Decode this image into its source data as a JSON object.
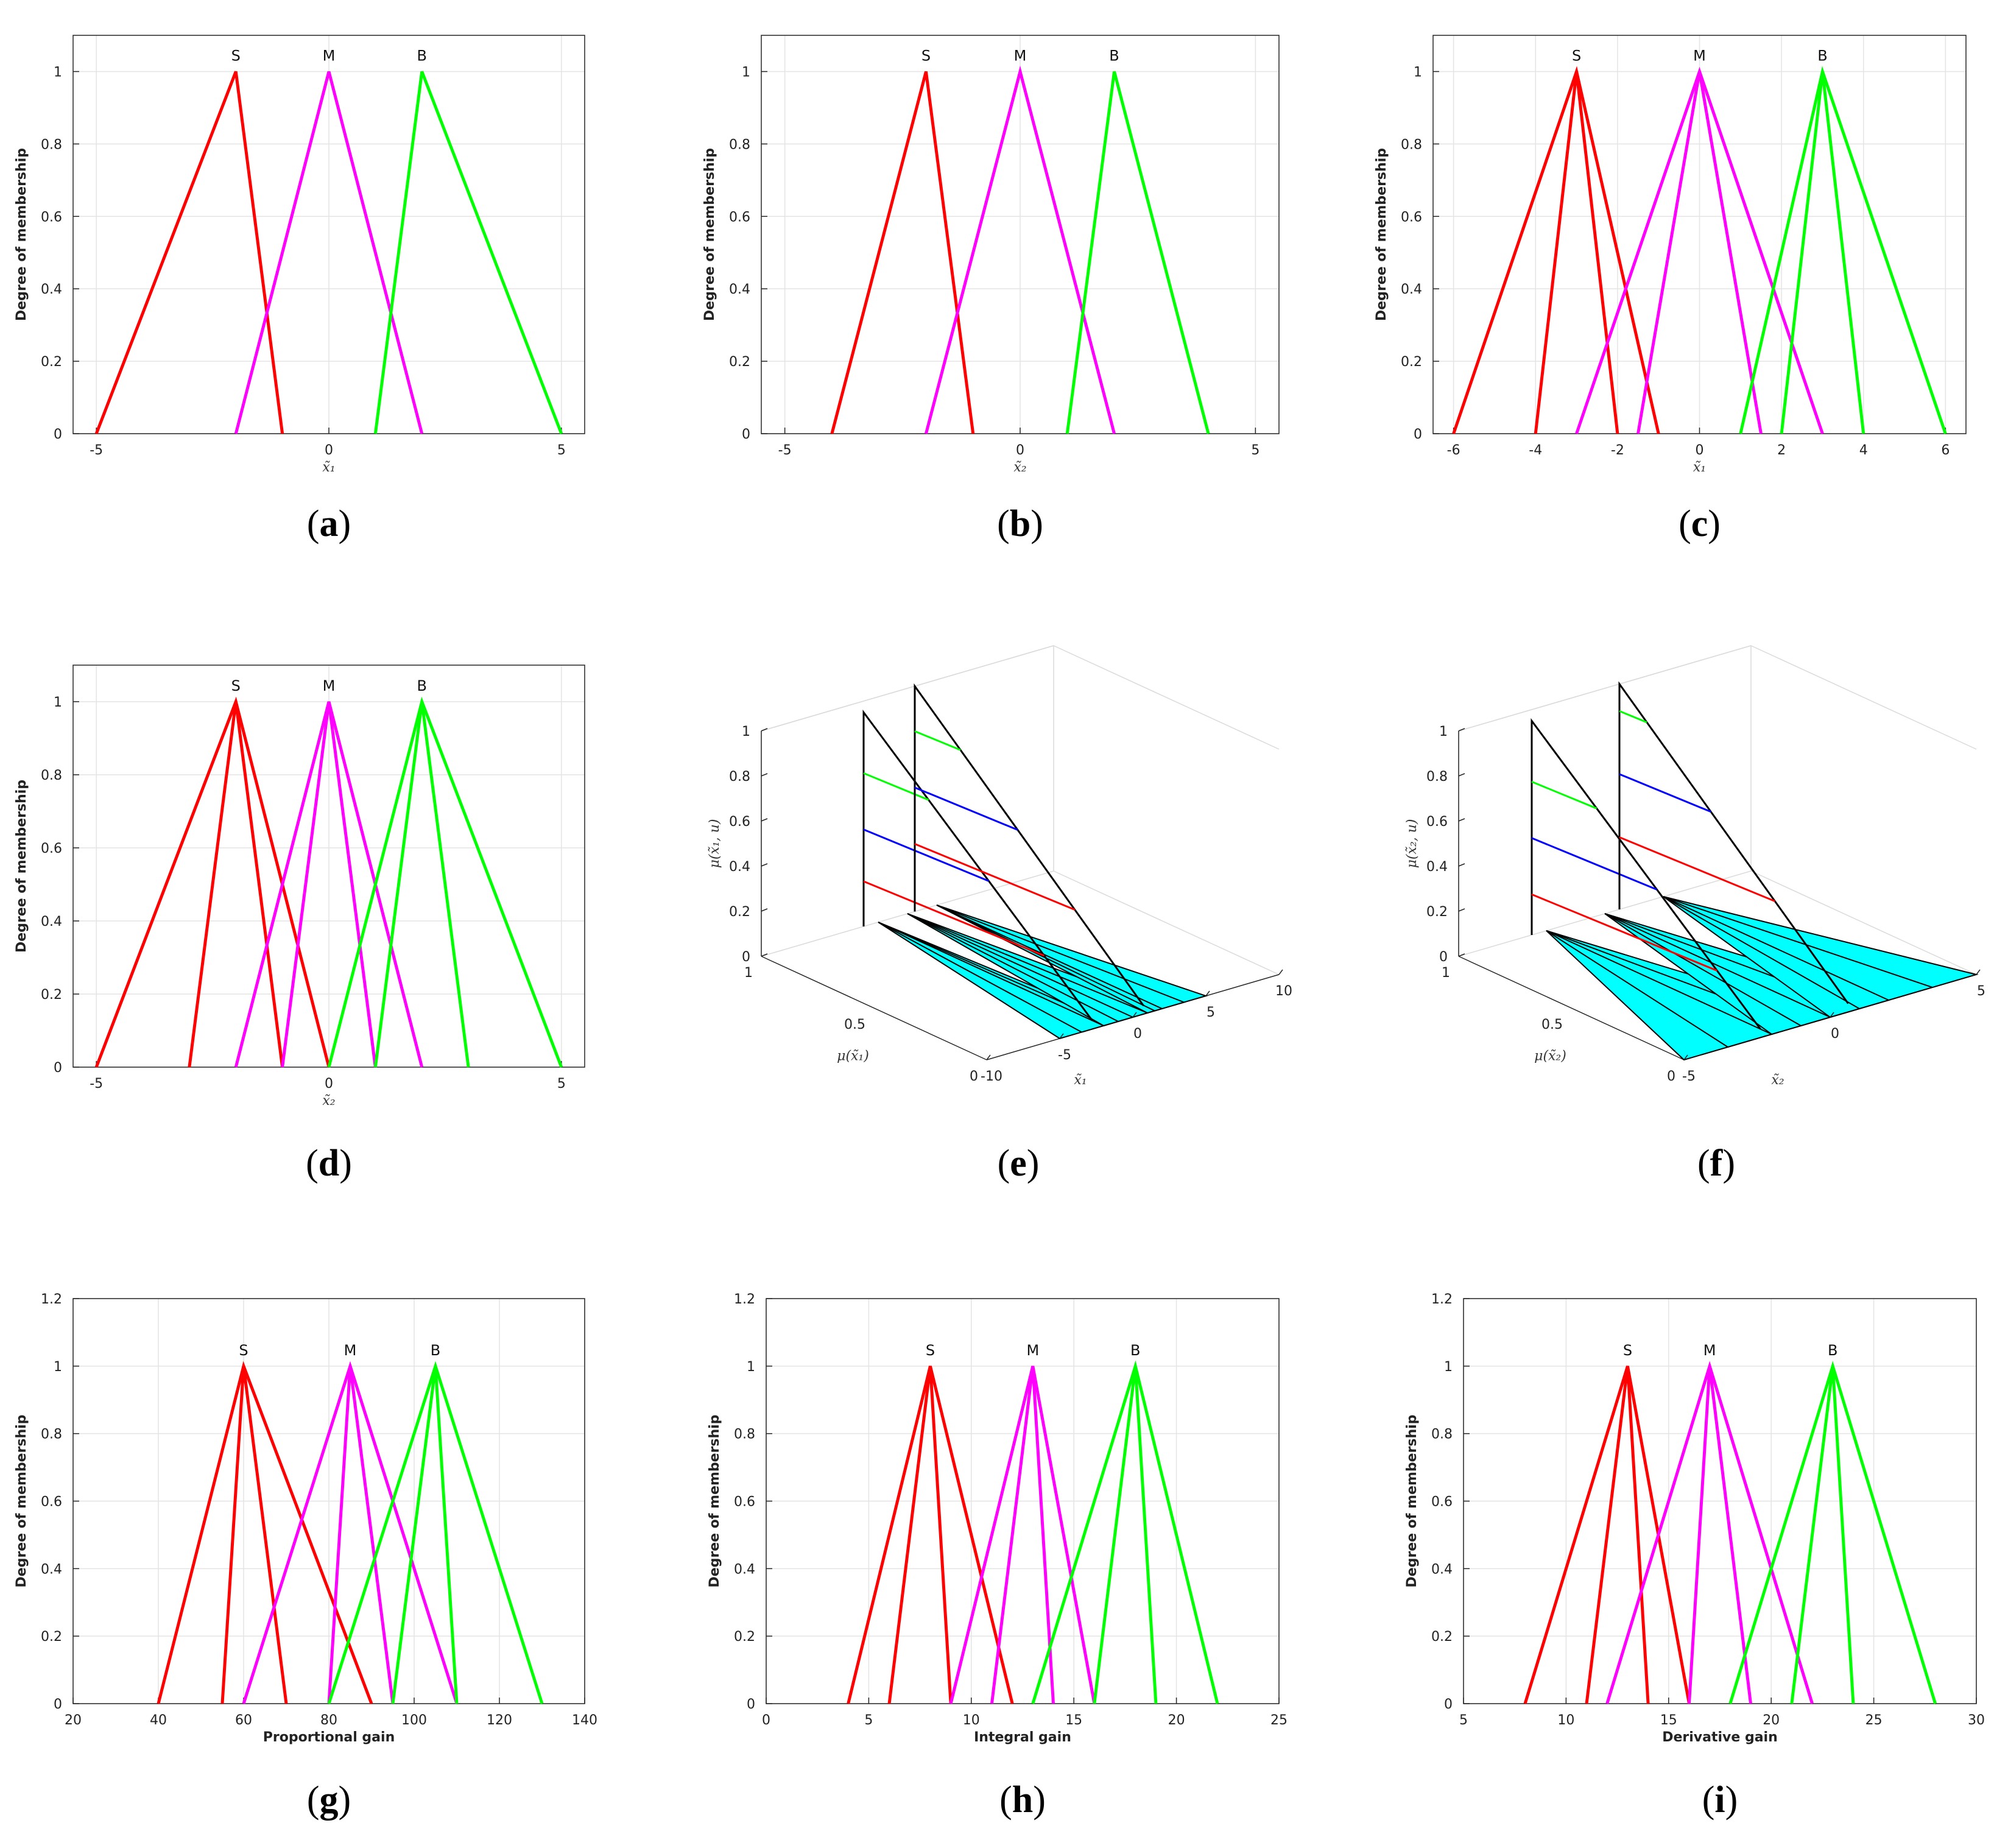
{
  "figure": {
    "ylabel_2d": "Degree of membership",
    "colors": {
      "S": "#ff0000",
      "M": "#ff00ff",
      "B": "#00ff00",
      "fill3d": "#00ffff",
      "mid": "#0000ff"
    }
  },
  "chart_data": [
    {
      "id": "a",
      "type": "line",
      "caption": "a",
      "xlabel": "x̃₁",
      "xlabel_weight": "normal",
      "xlim": [
        -5.5,
        5.5
      ],
      "ylim": [
        0,
        1.1
      ],
      "xticks": [
        -5,
        0,
        5
      ],
      "xtick_labels": [
        "-5",
        "0",
        "5"
      ],
      "yticks": [
        0,
        0.2,
        0.4,
        0.6,
        0.8,
        1
      ],
      "ytick_labels": [
        "0",
        "0.2",
        "0.4",
        "0.6",
        "0.8",
        "1"
      ],
      "series": [
        {
          "name": "S",
          "color": "#ff0000",
          "x": [
            -5,
            -2,
            -1
          ],
          "y": [
            0,
            1,
            0
          ]
        },
        {
          "name": "M",
          "color": "#ff00ff",
          "x": [
            -2,
            0,
            2
          ],
          "y": [
            0,
            1,
            0
          ]
        },
        {
          "name": "B",
          "color": "#00ff00",
          "x": [
            1,
            2,
            5
          ],
          "y": [
            0,
            1,
            0
          ]
        }
      ],
      "annotations": [
        {
          "text": "S",
          "x": -2
        },
        {
          "text": "M",
          "x": 0
        },
        {
          "text": "B",
          "x": 2
        }
      ]
    },
    {
      "id": "b",
      "type": "line",
      "caption": "b",
      "xlabel": "x̃₂",
      "xlabel_weight": "normal",
      "xlim": [
        -5.5,
        5.5
      ],
      "ylim": [
        0,
        1.1
      ],
      "xticks": [
        -5,
        0,
        5
      ],
      "xtick_labels": [
        "-5",
        "0",
        "5"
      ],
      "yticks": [
        0,
        0.2,
        0.4,
        0.6,
        0.8,
        1
      ],
      "ytick_labels": [
        "0",
        "0.2",
        "0.4",
        "0.6",
        "0.8",
        "1"
      ],
      "series": [
        {
          "name": "S",
          "color": "#ff0000",
          "x": [
            -4,
            -2,
            -1
          ],
          "y": [
            0,
            1,
            0
          ]
        },
        {
          "name": "M",
          "color": "#ff00ff",
          "x": [
            -2,
            0,
            2
          ],
          "y": [
            0,
            1,
            0
          ]
        },
        {
          "name": "B",
          "color": "#00ff00",
          "x": [
            1,
            2,
            4
          ],
          "y": [
            0,
            1,
            0
          ]
        }
      ],
      "annotations": [
        {
          "text": "S",
          "x": -2
        },
        {
          "text": "M",
          "x": 0
        },
        {
          "text": "B",
          "x": 2
        }
      ]
    },
    {
      "id": "c",
      "type": "line",
      "caption": "c",
      "xlabel": "x̃₁",
      "xlabel_weight": "normal",
      "xlim": [
        -6.5,
        6.5
      ],
      "ylim": [
        0,
        1.1
      ],
      "xticks": [
        -6,
        -4,
        -2,
        0,
        2,
        4,
        6
      ],
      "xtick_labels": [
        "-6",
        "-4",
        "-2",
        "0",
        "2",
        "4",
        "6"
      ],
      "yticks": [
        0,
        0.2,
        0.4,
        0.6,
        0.8,
        1
      ],
      "ytick_labels": [
        "0",
        "0.2",
        "0.4",
        "0.6",
        "0.8",
        "1"
      ],
      "series": [
        {
          "name": "S upper",
          "color": "#ff0000",
          "x": [
            -6,
            -3,
            -1
          ],
          "y": [
            0,
            1,
            0
          ]
        },
        {
          "name": "S lower",
          "color": "#ff0000",
          "x": [
            -4,
            -3,
            -2
          ],
          "y": [
            0,
            1,
            0
          ]
        },
        {
          "name": "M upper",
          "color": "#ff00ff",
          "x": [
            -3,
            0,
            3
          ],
          "y": [
            0,
            1,
            0
          ]
        },
        {
          "name": "M lower",
          "color": "#ff00ff",
          "x": [
            -1.5,
            0,
            1.5
          ],
          "y": [
            0,
            1,
            0
          ]
        },
        {
          "name": "B upper",
          "color": "#00ff00",
          "x": [
            1,
            3,
            6
          ],
          "y": [
            0,
            1,
            0
          ]
        },
        {
          "name": "B lower",
          "color": "#00ff00",
          "x": [
            2,
            3,
            4
          ],
          "y": [
            0,
            1,
            0
          ]
        }
      ],
      "annotations": [
        {
          "text": "S",
          "x": -3
        },
        {
          "text": "M",
          "x": 0
        },
        {
          "text": "B",
          "x": 3
        }
      ]
    },
    {
      "id": "d",
      "type": "line",
      "caption": "d",
      "xlabel": "x̃₂",
      "xlabel_weight": "normal",
      "xlim": [
        -5.5,
        5.5
      ],
      "ylim": [
        0,
        1.1
      ],
      "xticks": [
        -5,
        0,
        5
      ],
      "xtick_labels": [
        "-5",
        "0",
        "5"
      ],
      "yticks": [
        0,
        0.2,
        0.4,
        0.6,
        0.8,
        1
      ],
      "ytick_labels": [
        "0",
        "0.2",
        "0.4",
        "0.6",
        "0.8",
        "1"
      ],
      "series": [
        {
          "name": "S upper",
          "color": "#ff0000",
          "x": [
            -5,
            -2,
            0
          ],
          "y": [
            0,
            1,
            0
          ]
        },
        {
          "name": "S lower",
          "color": "#ff0000",
          "x": [
            -3,
            -2,
            -1
          ],
          "y": [
            0,
            1,
            0
          ]
        },
        {
          "name": "M upper",
          "color": "#ff00ff",
          "x": [
            -2,
            0,
            2
          ],
          "y": [
            0,
            1,
            0
          ]
        },
        {
          "name": "M lower",
          "color": "#ff00ff",
          "x": [
            -1,
            0,
            1
          ],
          "y": [
            0,
            1,
            0
          ]
        },
        {
          "name": "B upper",
          "color": "#00ff00",
          "x": [
            0,
            2,
            5
          ],
          "y": [
            0,
            1,
            0
          ]
        },
        {
          "name": "B lower",
          "color": "#00ff00",
          "x": [
            1,
            2,
            3
          ],
          "y": [
            0,
            1,
            0
          ]
        }
      ],
      "annotations": [
        {
          "text": "S",
          "x": -2
        },
        {
          "text": "M",
          "x": 0
        },
        {
          "text": "B",
          "x": 2
        }
      ]
    },
    {
      "id": "e",
      "type": "surface3d",
      "caption": "e",
      "zlabel": "μ(x̃₁, u)",
      "ulabel": "μ(x̃₁)",
      "xlabel": "x̃₁",
      "zticks": [
        "0",
        "0.2",
        "0.4",
        "0.6",
        "0.8",
        "1"
      ],
      "uticks": [
        "1",
        "0.5",
        "0"
      ],
      "xticks": [
        "-10",
        "-5",
        "0",
        "5",
        "10"
      ],
      "xlim": [
        -10,
        10
      ],
      "wedges": [
        {
          "name": "S",
          "x": [
            -5,
            -2,
            -1
          ]
        },
        {
          "name": "M",
          "x": [
            -2,
            0,
            2
          ]
        },
        {
          "name": "B",
          "x": [
            1,
            2,
            5
          ]
        }
      ],
      "slices": [
        {
          "x": -3,
          "u": 1,
          "peak": 0.95,
          "marks": [
            {
              "color": "#ff0000",
              "z": 0.2
            },
            {
              "color": "#0000ff",
              "z": 0.43
            },
            {
              "color": "#00ff00",
              "z": 0.68
            }
          ]
        },
        {
          "x": 0.5,
          "u": 1,
          "peak": 1.0,
          "marks": [
            {
              "color": "#ff0000",
              "z": 0.3
            },
            {
              "color": "#0000ff",
              "z": 0.55
            },
            {
              "color": "#00ff00",
              "z": 0.8
            }
          ]
        }
      ]
    },
    {
      "id": "f",
      "type": "surface3d",
      "caption": "f",
      "zlabel": "μ(x̃₂, u)",
      "ulabel": "μ(x̃₂)",
      "xlabel": "x̃₂",
      "zticks": [
        "0",
        "0.2",
        "0.4",
        "0.6",
        "0.8",
        "1"
      ],
      "uticks": [
        "1",
        "0.5",
        "0"
      ],
      "xticks": [
        "-5",
        "0",
        "5"
      ],
      "xlim": [
        -5,
        5
      ],
      "wedges": [
        {
          "name": "S",
          "x": [
            -5,
            -2,
            0
          ]
        },
        {
          "name": "M",
          "x": [
            -2,
            0,
            2
          ]
        },
        {
          "name": "B",
          "x": [
            0,
            2,
            5
          ]
        }
      ],
      "slices": [
        {
          "x": -2.5,
          "u": 1,
          "peak": 0.95,
          "marks": [
            {
              "color": "#ff0000",
              "z": 0.18
            },
            {
              "color": "#0000ff",
              "z": 0.43
            },
            {
              "color": "#00ff00",
              "z": 0.68
            }
          ]
        },
        {
          "x": 0.5,
          "u": 1,
          "peak": 1.0,
          "marks": [
            {
              "color": "#ff0000",
              "z": 0.32
            },
            {
              "color": "#0000ff",
              "z": 0.6
            },
            {
              "color": "#00ff00",
              "z": 0.88
            }
          ]
        }
      ]
    },
    {
      "id": "g",
      "type": "line",
      "caption": "g",
      "xlabel": "Proportional gain",
      "xlabel_weight": "bold",
      "xlim": [
        20,
        140
      ],
      "ylim": [
        0,
        1.2
      ],
      "xticks": [
        20,
        40,
        60,
        80,
        100,
        120,
        140
      ],
      "xtick_labels": [
        "20",
        "40",
        "60",
        "80",
        "100",
        "120",
        "140"
      ],
      "yticks": [
        0,
        0.2,
        0.4,
        0.6,
        0.8,
        1,
        1.2
      ],
      "ytick_labels": [
        "0",
        "0.2",
        "0.4",
        "0.6",
        "0.8",
        "1",
        "1.2"
      ],
      "series": [
        {
          "name": "S upper",
          "color": "#ff0000",
          "x": [
            40,
            60,
            90
          ],
          "y": [
            0,
            1,
            0
          ]
        },
        {
          "name": "S lower",
          "color": "#ff0000",
          "x": [
            55,
            60,
            70
          ],
          "y": [
            0,
            1,
            0
          ]
        },
        {
          "name": "M upper",
          "color": "#ff00ff",
          "x": [
            60,
            85,
            110
          ],
          "y": [
            0,
            1,
            0
          ]
        },
        {
          "name": "M lower",
          "color": "#ff00ff",
          "x": [
            80,
            85,
            95
          ],
          "y": [
            0,
            1,
            0
          ]
        },
        {
          "name": "B upper",
          "color": "#00ff00",
          "x": [
            80,
            105,
            130
          ],
          "y": [
            0,
            1,
            0
          ]
        },
        {
          "name": "B lower",
          "color": "#00ff00",
          "x": [
            95,
            105,
            110
          ],
          "y": [
            0,
            1,
            0
          ]
        }
      ],
      "annotations": [
        {
          "text": "S",
          "x": 60
        },
        {
          "text": "M",
          "x": 85
        },
        {
          "text": "B",
          "x": 105
        }
      ]
    },
    {
      "id": "h",
      "type": "line",
      "caption": "h",
      "xlabel": "Integral gain",
      "xlabel_weight": "bold",
      "xlim": [
        0,
        25
      ],
      "ylim": [
        0,
        1.2
      ],
      "xticks": [
        0,
        5,
        10,
        15,
        20,
        25
      ],
      "xtick_labels": [
        "0",
        "5",
        "10",
        "15",
        "20",
        "25"
      ],
      "yticks": [
        0,
        0.2,
        0.4,
        0.6,
        0.8,
        1,
        1.2
      ],
      "ytick_labels": [
        "0",
        "0.2",
        "0.4",
        "0.6",
        "0.8",
        "1",
        "1.2"
      ],
      "series": [
        {
          "name": "S upper",
          "color": "#ff0000",
          "x": [
            4,
            8,
            12
          ],
          "y": [
            0,
            1,
            0
          ]
        },
        {
          "name": "S lower",
          "color": "#ff0000",
          "x": [
            6,
            8,
            9
          ],
          "y": [
            0,
            1,
            0
          ]
        },
        {
          "name": "M upper",
          "color": "#ff00ff",
          "x": [
            9,
            13,
            16
          ],
          "y": [
            0,
            1,
            0
          ]
        },
        {
          "name": "M lower",
          "color": "#ff00ff",
          "x": [
            11,
            13,
            14
          ],
          "y": [
            0,
            1,
            0
          ]
        },
        {
          "name": "B upper",
          "color": "#00ff00",
          "x": [
            13,
            18,
            22
          ],
          "y": [
            0,
            1,
            0
          ]
        },
        {
          "name": "B lower",
          "color": "#00ff00",
          "x": [
            16,
            18,
            19
          ],
          "y": [
            0,
            1,
            0
          ]
        }
      ],
      "annotations": [
        {
          "text": "S",
          "x": 8
        },
        {
          "text": "M",
          "x": 13
        },
        {
          "text": "B",
          "x": 18
        }
      ]
    },
    {
      "id": "i",
      "type": "line",
      "caption": "i",
      "xlabel": "Derivative gain",
      "xlabel_weight": "bold",
      "xlim": [
        5,
        30
      ],
      "ylim": [
        0,
        1.2
      ],
      "xticks": [
        5,
        10,
        15,
        20,
        25,
        30
      ],
      "xtick_labels": [
        "5",
        "10",
        "15",
        "20",
        "25",
        "30"
      ],
      "yticks": [
        0,
        0.2,
        0.4,
        0.6,
        0.8,
        1,
        1.2
      ],
      "ytick_labels": [
        "0",
        "0.2",
        "0.4",
        "0.6",
        "0.8",
        "1",
        "1.2"
      ],
      "series": [
        {
          "name": "S upper",
          "color": "#ff0000",
          "x": [
            8,
            13,
            16
          ],
          "y": [
            0,
            1,
            0
          ]
        },
        {
          "name": "S lower",
          "color": "#ff0000",
          "x": [
            11,
            13,
            14
          ],
          "y": [
            0,
            1,
            0
          ]
        },
        {
          "name": "M upper",
          "color": "#ff00ff",
          "x": [
            12,
            17,
            22
          ],
          "y": [
            0,
            1,
            0
          ]
        },
        {
          "name": "M lower",
          "color": "#ff00ff",
          "x": [
            16,
            17,
            19
          ],
          "y": [
            0,
            1,
            0
          ]
        },
        {
          "name": "B upper",
          "color": "#00ff00",
          "x": [
            18,
            23,
            28
          ],
          "y": [
            0,
            1,
            0
          ]
        },
        {
          "name": "B lower",
          "color": "#00ff00",
          "x": [
            21,
            23,
            24
          ],
          "y": [
            0,
            1,
            0
          ]
        }
      ],
      "annotations": [
        {
          "text": "S",
          "x": 13
        },
        {
          "text": "M",
          "x": 17
        },
        {
          "text": "B",
          "x": 23
        }
      ]
    }
  ]
}
